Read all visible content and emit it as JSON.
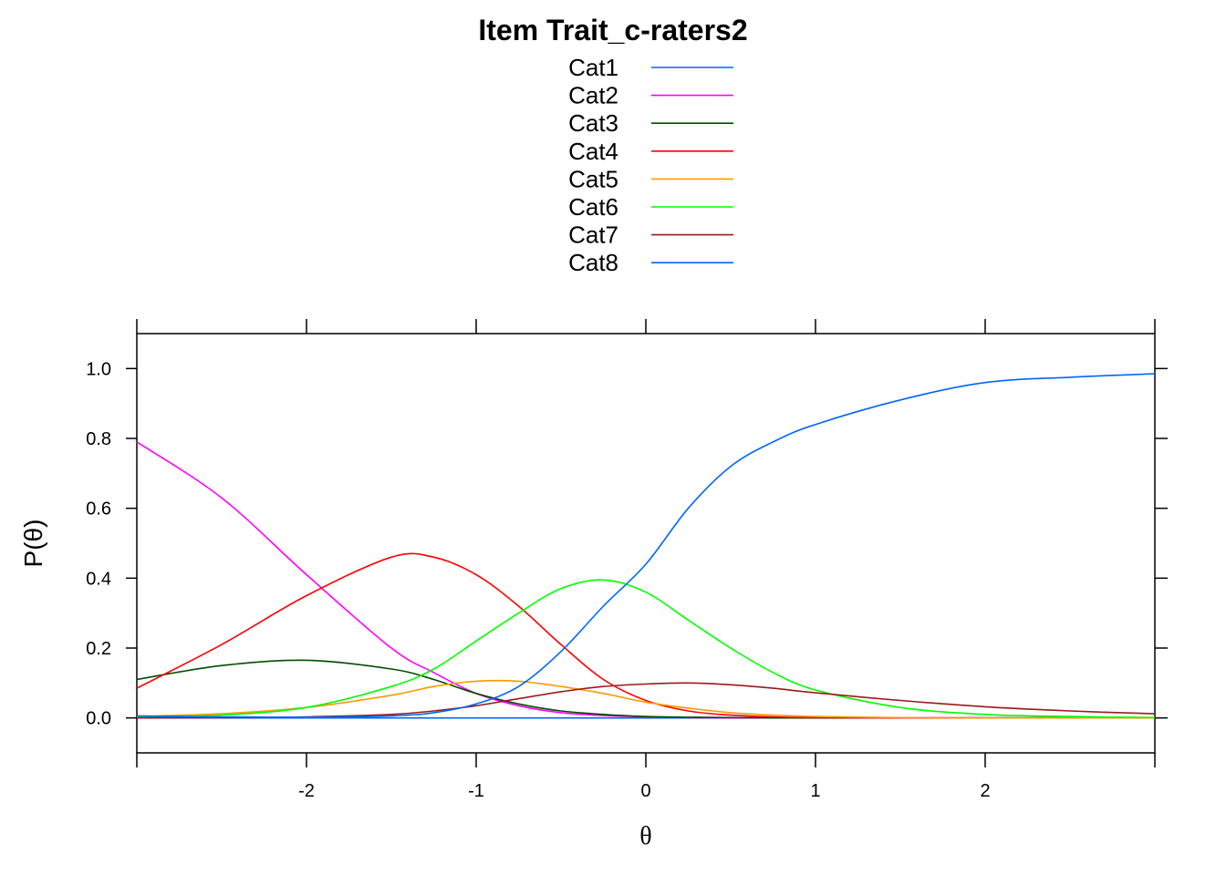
{
  "chart_data": {
    "type": "line",
    "title": "Item Trait_c-raters2",
    "xlabel": "θ",
    "ylabel": "P(θ)",
    "xlim": [
      -3,
      3
    ],
    "ylim": [
      -0.1,
      1.1
    ],
    "x_ticks": [
      -2,
      -1,
      0,
      1,
      2
    ],
    "x_tick_labels": [
      "-2",
      "-1",
      "0",
      "1",
      "2"
    ],
    "y_ticks": [
      0.0,
      0.2,
      0.4,
      0.6,
      0.8,
      1.0
    ],
    "y_tick_labels": [
      "0.0",
      "0.2",
      "0.4",
      "0.6",
      "0.8",
      "1.0"
    ],
    "grid": false,
    "legend_position": "top-center",
    "x": [
      -3,
      -2.5,
      -2,
      -1.5,
      -1.25,
      -1,
      -0.75,
      -0.5,
      -0.25,
      0,
      0.25,
      0.5,
      0.75,
      1,
      1.5,
      2,
      2.5,
      3
    ],
    "series": [
      {
        "name": "Cat1",
        "color": "#0066ff",
        "values": [
          0,
          0,
          0,
          0,
          0,
          0,
          0,
          0,
          0,
          0,
          0,
          0,
          0,
          0,
          0,
          0,
          0,
          0
        ]
      },
      {
        "name": "Cat2",
        "color": "#ff00ff",
        "values": [
          0.79,
          0.63,
          0.41,
          0.2,
          0.13,
          0.07,
          0.035,
          0.015,
          0.007,
          0.003,
          0.001,
          0,
          0,
          0,
          0,
          0,
          0,
          0
        ]
      },
      {
        "name": "Cat3",
        "color": "#004d00",
        "values": [
          0.11,
          0.15,
          0.165,
          0.14,
          0.11,
          0.07,
          0.04,
          0.02,
          0.01,
          0.004,
          0.002,
          0.001,
          0,
          0,
          0,
          0,
          0,
          0
        ]
      },
      {
        "name": "Cat4",
        "color": "#ff0000",
        "values": [
          0.085,
          0.21,
          0.35,
          0.46,
          0.46,
          0.41,
          0.32,
          0.21,
          0.11,
          0.05,
          0.02,
          0.008,
          0.003,
          0.001,
          0,
          0,
          0,
          0
        ]
      },
      {
        "name": "Cat5",
        "color": "#ff9900",
        "values": [
          0.004,
          0.012,
          0.03,
          0.065,
          0.09,
          0.105,
          0.105,
          0.09,
          0.07,
          0.045,
          0.028,
          0.015,
          0.008,
          0.004,
          0.001,
          0,
          0,
          0
        ]
      },
      {
        "name": "Cat6",
        "color": "#00ff00",
        "values": [
          0.002,
          0.008,
          0.03,
          0.09,
          0.14,
          0.22,
          0.3,
          0.37,
          0.395,
          0.36,
          0.28,
          0.2,
          0.13,
          0.08,
          0.03,
          0.01,
          0.004,
          0.001
        ]
      },
      {
        "name": "Cat7",
        "color": "#991a1a",
        "values": [
          0,
          0.001,
          0.003,
          0.01,
          0.02,
          0.035,
          0.055,
          0.075,
          0.09,
          0.097,
          0.1,
          0.095,
          0.085,
          0.072,
          0.05,
          0.032,
          0.02,
          0.012
        ]
      },
      {
        "name": "Cat8",
        "color": "#0066ff",
        "values": [
          0.006,
          0.003,
          0.002,
          0.006,
          0.015,
          0.04,
          0.09,
          0.19,
          0.32,
          0.44,
          0.6,
          0.72,
          0.79,
          0.84,
          0.91,
          0.96,
          0.975,
          0.985
        ]
      }
    ]
  }
}
